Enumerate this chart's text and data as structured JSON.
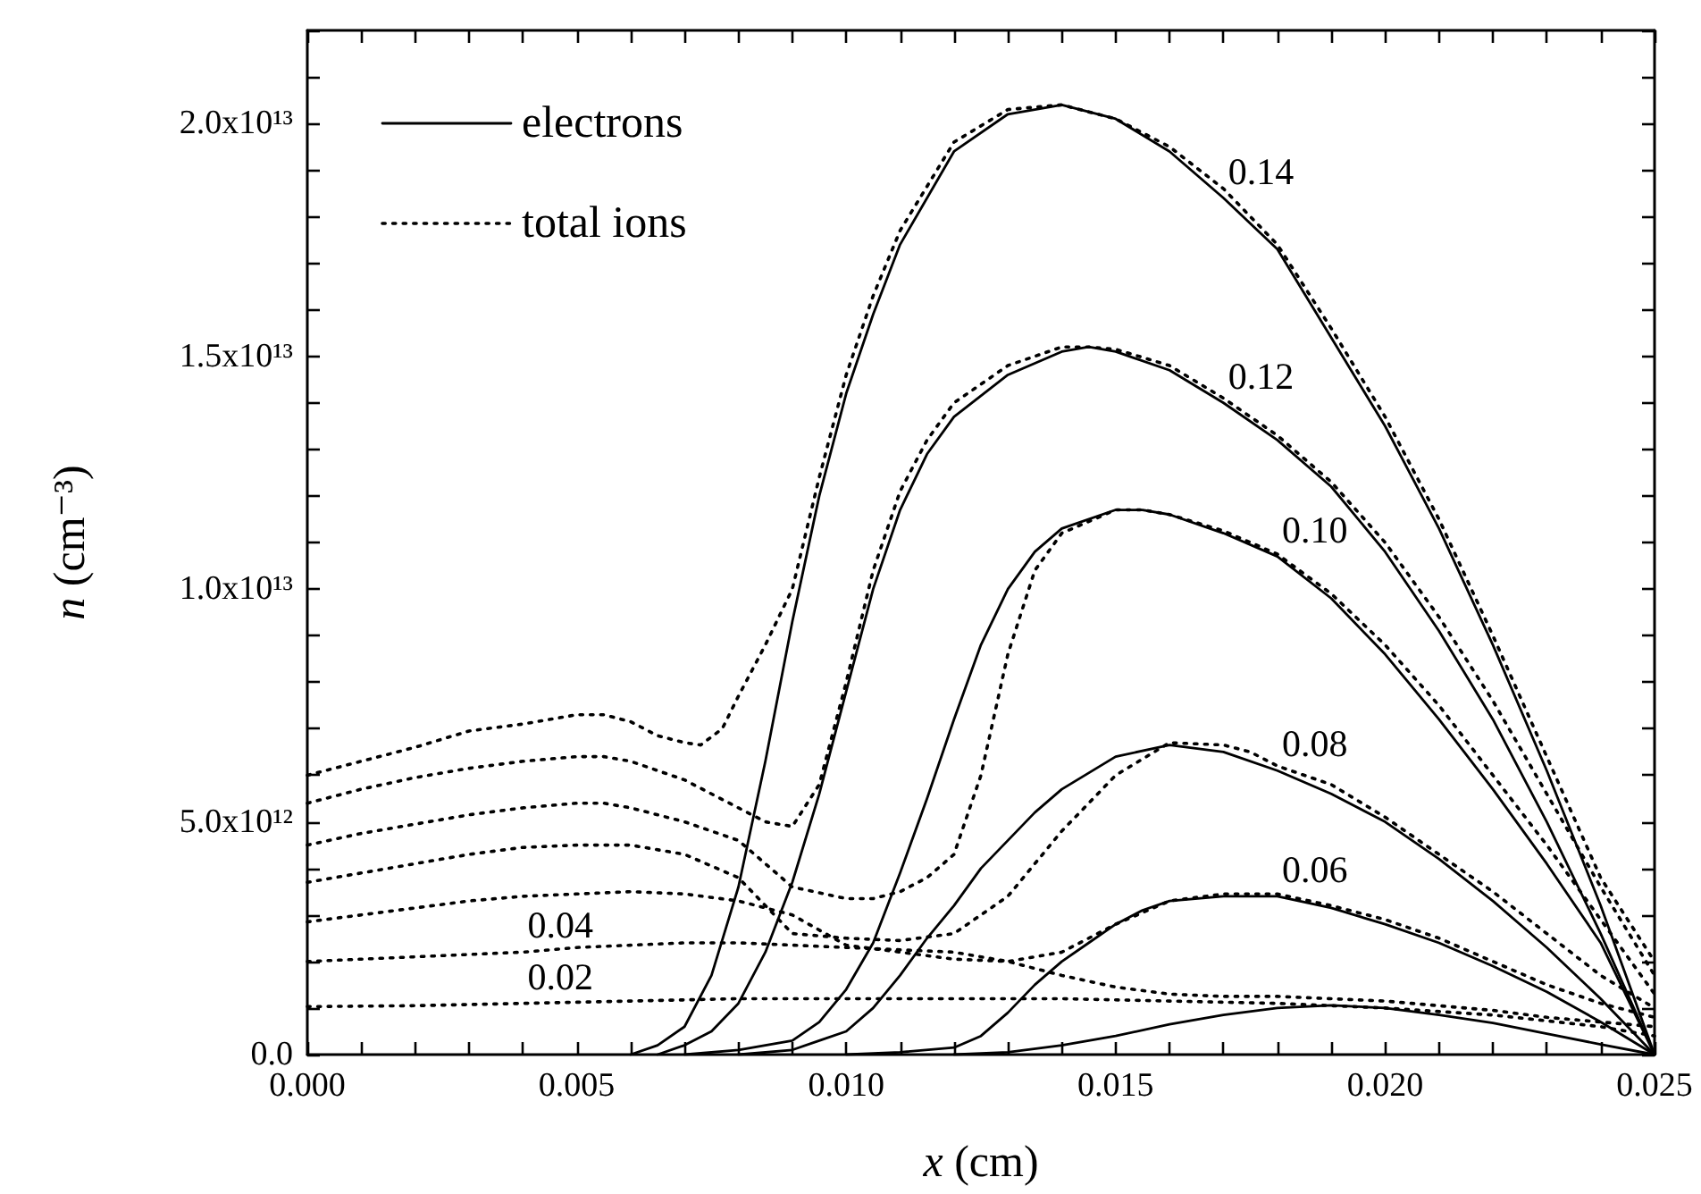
{
  "chart_data": {
    "type": "line",
    "xlabel": "x (cm)",
    "ylabel": "n (cm⁻³)",
    "legend": "top left",
    "xlim": [
      0,
      0.025
    ],
    "ylim": [
      0,
      22000000000000.0
    ],
    "xticks": [
      {
        "value": 0,
        "label": "0.000"
      },
      {
        "value": 0.001,
        "label": null
      },
      {
        "value": 0.002,
        "label": null
      },
      {
        "value": 0.003,
        "label": null
      },
      {
        "value": 0.004,
        "label": null
      },
      {
        "value": 0.005,
        "label": "0.005"
      },
      {
        "value": 0.006,
        "label": null
      },
      {
        "value": 0.007,
        "label": null
      },
      {
        "value": 0.008,
        "label": null
      },
      {
        "value": 0.009,
        "label": null
      },
      {
        "value": 0.01,
        "label": "0.010"
      },
      {
        "value": 0.011,
        "label": null
      },
      {
        "value": 0.012,
        "label": null
      },
      {
        "value": 0.013,
        "label": null
      },
      {
        "value": 0.014,
        "label": null
      },
      {
        "value": 0.015,
        "label": "0.015"
      },
      {
        "value": 0.016,
        "label": null
      },
      {
        "value": 0.017,
        "label": null
      },
      {
        "value": 0.018,
        "label": null
      },
      {
        "value": 0.019,
        "label": null
      },
      {
        "value": 0.02,
        "label": "0.020"
      },
      {
        "value": 0.021,
        "label": null
      },
      {
        "value": 0.022,
        "label": null
      },
      {
        "value": 0.023,
        "label": null
      },
      {
        "value": 0.024,
        "label": null
      },
      {
        "value": 0.025,
        "label": "0.025"
      }
    ],
    "yticks": [
      {
        "value": 0,
        "label": "0.0"
      },
      {
        "value": 1000000000000.0,
        "label": null
      },
      {
        "value": 2000000000000.0,
        "label": null
      },
      {
        "value": 3000000000000.0,
        "label": null
      },
      {
        "value": 4000000000000.0,
        "label": null
      },
      {
        "value": 5000000000000.0,
        "label": "5.0x10¹²"
      },
      {
        "value": 6000000000000.0,
        "label": null
      },
      {
        "value": 7000000000000.0,
        "label": null
      },
      {
        "value": 8000000000000.0,
        "label": null
      },
      {
        "value": 9000000000000.0,
        "label": null
      },
      {
        "value": 10000000000000.0,
        "label": "1.0x10¹³"
      },
      {
        "value": 11000000000000.0,
        "label": null
      },
      {
        "value": 12000000000000.0,
        "label": null
      },
      {
        "value": 13000000000000.0,
        "label": null
      },
      {
        "value": 14000000000000.0,
        "label": null
      },
      {
        "value": 15000000000000.0,
        "label": "1.5x10¹³"
      },
      {
        "value": 16000000000000.0,
        "label": null
      },
      {
        "value": 17000000000000.0,
        "label": null
      },
      {
        "value": 18000000000000.0,
        "label": null
      },
      {
        "value": 19000000000000.0,
        "label": null
      },
      {
        "value": 20000000000000.0,
        "label": "2.0x10¹³"
      },
      {
        "value": 21000000000000.0,
        "label": null
      },
      {
        "value": 22000000000000.0,
        "label": null
      }
    ],
    "series": [
      {
        "name": "electrons",
        "color": "#000000",
        "line_style": "solid",
        "x": [
          0.006,
          0.0065,
          0.007,
          0.0075,
          0.008,
          0.0085,
          0.009,
          0.0095,
          0.01,
          0.0105,
          0.011,
          0.012,
          0.013,
          0.014,
          0.015,
          0.016,
          0.017,
          0.018,
          0.019,
          0.02,
          0.021,
          0.022,
          0.023,
          0.024,
          0.025
        ],
        "values": [
          0,
          200000000000.0,
          600000000000.0,
          1700000000000.0,
          3600000000000.0,
          6300000000000.0,
          9300000000000.0,
          12000000000000.0,
          14200000000000.0,
          15900000000000.0,
          17400000000000.0,
          19400000000000.0,
          20200000000000.0,
          20400000000000.0,
          20100000000000.0,
          19400000000000.0,
          18400000000000.0,
          17300000000000.0,
          15400000000000.0,
          13500000000000.0,
          11300000000000.0,
          8800000000000.0,
          6100000000000.0,
          3200000000000.0,
          0
        ]
      },
      {
        "color": "#000000",
        "line_style": "solid",
        "x": [
          0.0065,
          0.007,
          0.0075,
          0.008,
          0.0085,
          0.009,
          0.0095,
          0.01,
          0.0105,
          0.011,
          0.0115,
          0.012,
          0.013,
          0.014,
          0.0145,
          0.015,
          0.016,
          0.017,
          0.018,
          0.019,
          0.02,
          0.021,
          0.022,
          0.023,
          0.024,
          0.025
        ],
        "values": [
          0,
          200000000000.0,
          500000000000.0,
          1100000000000.0,
          2200000000000.0,
          3700000000000.0,
          5600000000000.0,
          7800000000000.0,
          10000000000000.0,
          11700000000000.0,
          12900000000000.0,
          13700000000000.0,
          14600000000000.0,
          15100000000000.0,
          15200000000000.0,
          15100000000000.0,
          14700000000000.0,
          14000000000000.0,
          13200000000000.0,
          12200000000000.0,
          10800000000000.0,
          9100000000000.0,
          7200000000000.0,
          5000000000000.0,
          2600000000000.0,
          0
        ]
      },
      {
        "color": "#000000",
        "line_style": "solid",
        "x": [
          0.007,
          0.008,
          0.009,
          0.0095,
          0.01,
          0.0105,
          0.011,
          0.0115,
          0.012,
          0.0125,
          0.013,
          0.0135,
          0.014,
          0.015,
          0.0155,
          0.016,
          0.017,
          0.018,
          0.019,
          0.02,
          0.021,
          0.022,
          0.023,
          0.024,
          0.025
        ],
        "values": [
          0,
          100000000000.0,
          300000000000.0,
          700000000000.0,
          1400000000000.0,
          2400000000000.0,
          3900000000000.0,
          5500000000000.0,
          7200000000000.0,
          8800000000000.0,
          10000000000000.0,
          10800000000000.0,
          11300000000000.0,
          11700000000000.0,
          11700000000000.0,
          11600000000000.0,
          11200000000000.0,
          10700000000000.0,
          9800000000000.0,
          8600000000000.0,
          7200000000000.0,
          5700000000000.0,
          4100000000000.0,
          2400000000000.0,
          0
        ]
      },
      {
        "color": "#000000",
        "line_style": "solid",
        "x": [
          0.008,
          0.009,
          0.0095,
          0.01,
          0.0105,
          0.011,
          0.0115,
          0.012,
          0.0125,
          0.013,
          0.0135,
          0.014,
          0.015,
          0.016,
          0.017,
          0.018,
          0.019,
          0.02,
          0.021,
          0.022,
          0.023,
          0.024,
          0.025
        ],
        "values": [
          0,
          100000000000.0,
          300000000000.0,
          500000000000.0,
          1000000000000.0,
          1700000000000.0,
          2500000000000.0,
          3200000000000.0,
          4000000000000.0,
          4600000000000.0,
          5200000000000.0,
          5700000000000.0,
          6400000000000.0,
          6650000000000.0,
          6500000000000.0,
          6100000000000.0,
          5600000000000.0,
          5000000000000.0,
          4200000000000.0,
          3300000000000.0,
          2300000000000.0,
          1200000000000.0,
          0
        ]
      },
      {
        "color": "#000000",
        "line_style": "solid",
        "x": [
          0.01,
          0.011,
          0.012,
          0.0125,
          0.013,
          0.0135,
          0.014,
          0.0145,
          0.015,
          0.0155,
          0.016,
          0.017,
          0.018,
          0.019,
          0.02,
          0.021,
          0.022,
          0.023,
          0.024,
          0.025
        ],
        "values": [
          0,
          50000000000.0,
          150000000000.0,
          400000000000.0,
          900000000000.0,
          1500000000000.0,
          2000000000000.0,
          2400000000000.0,
          2800000000000.0,
          3100000000000.0,
          3300000000000.0,
          3400000000000.0,
          3400000000000.0,
          3150000000000.0,
          2800000000000.0,
          2400000000000.0,
          1900000000000.0,
          1350000000000.0,
          700000000000.0,
          0
        ]
      },
      {
        "color": "#000000",
        "line_style": "solid",
        "x": [
          0.012,
          0.013,
          0.014,
          0.015,
          0.016,
          0.017,
          0.018,
          0.019,
          0.02,
          0.021,
          0.022,
          0.023,
          0.024,
          0.025
        ],
        "values": [
          0,
          50000000000.0,
          200000000000.0,
          400000000000.0,
          650000000000.0,
          850000000000.0,
          1000000000000.0,
          1060000000000.0,
          1000000000000.0,
          850000000000.0,
          680000000000.0,
          450000000000.0,
          220000000000.0,
          0
        ]
      },
      {
        "name": "total ions",
        "color": "#000000",
        "line_style": "dotted",
        "x": [
          0,
          0.001,
          0.002,
          0.003,
          0.004,
          0.005,
          0.0055,
          0.006,
          0.0065,
          0.007,
          0.0073,
          0.0077,
          0.008,
          0.0085,
          0.009,
          0.0095,
          0.01,
          0.0105,
          0.011,
          0.012,
          0.013,
          0.014,
          0.015,
          0.016,
          0.017,
          0.018,
          0.019,
          0.02,
          0.021,
          0.022,
          0.023,
          0.024,
          0.025
        ],
        "values": [
          6000000000000.0,
          6300000000000.0,
          6600000000000.0,
          6950000000000.0,
          7100000000000.0,
          7300000000000.0,
          7300000000000.0,
          7150000000000.0,
          6850000000000.0,
          6700000000000.0,
          6650000000000.0,
          7000000000000.0,
          7700000000000.0,
          8800000000000.0,
          10000000000000.0,
          12400000000000.0,
          14600000000000.0,
          16300000000000.0,
          17700000000000.0,
          19600000000000.0,
          20300000000000.0,
          20400000000000.0,
          20100000000000.0,
          19500000000000.0,
          18600000000000.0,
          17400000000000.0,
          15600000000000.0,
          13700000000000.0,
          11500000000000.0,
          9000000000000.0,
          6400000000000.0,
          3800000000000.0,
          2000000000000.0
        ]
      },
      {
        "color": "#000000",
        "line_style": "dotted",
        "x": [
          0,
          0.001,
          0.002,
          0.003,
          0.004,
          0.005,
          0.0055,
          0.006,
          0.007,
          0.008,
          0.0085,
          0.009,
          0.0095,
          0.01,
          0.0105,
          0.011,
          0.0115,
          0.012,
          0.013,
          0.014,
          0.0145,
          0.015,
          0.016,
          0.017,
          0.018,
          0.019,
          0.02,
          0.021,
          0.022,
          0.023,
          0.024,
          0.025
        ],
        "values": [
          5400000000000.0,
          5700000000000.0,
          5950000000000.0,
          6150000000000.0,
          6300000000000.0,
          6400000000000.0,
          6400000000000.0,
          6300000000000.0,
          5900000000000.0,
          5300000000000.0,
          5000000000000.0,
          4900000000000.0,
          5800000000000.0,
          8000000000000.0,
          10400000000000.0,
          12100000000000.0,
          13200000000000.0,
          14000000000000.0,
          14800000000000.0,
          15200000000000.0,
          15200000000000.0,
          15150000000000.0,
          14800000000000.0,
          14100000000000.0,
          13300000000000.0,
          12300000000000.0,
          11000000000000.0,
          9400000000000.0,
          7600000000000.0,
          5600000000000.0,
          3600000000000.0,
          1700000000000.0
        ]
      },
      {
        "color": "#000000",
        "line_style": "dotted",
        "x": [
          0,
          0.001,
          0.002,
          0.003,
          0.004,
          0.005,
          0.0055,
          0.006,
          0.007,
          0.008,
          0.009,
          0.01,
          0.0105,
          0.011,
          0.0115,
          0.012,
          0.0125,
          0.013,
          0.0135,
          0.014,
          0.015,
          0.0155,
          0.016,
          0.017,
          0.018,
          0.019,
          0.02,
          0.021,
          0.022,
          0.023,
          0.024,
          0.025
        ],
        "values": [
          4500000000000.0,
          4750000000000.0,
          4950000000000.0,
          5150000000000.0,
          5300000000000.0,
          5400000000000.0,
          5400000000000.0,
          5300000000000.0,
          5000000000000.0,
          4600000000000.0,
          3600000000000.0,
          3350000000000.0,
          3350000000000.0,
          3500000000000.0,
          3800000000000.0,
          4300000000000.0,
          6000000000000.0,
          8600000000000.0,
          10400000000000.0,
          11200000000000.0,
          11700000000000.0,
          11700000000000.0,
          11600000000000.0,
          11250000000000.0,
          10750000000000.0,
          9900000000000.0,
          8800000000000.0,
          7500000000000.0,
          6000000000000.0,
          4500000000000.0,
          2900000000000.0,
          1300000000000.0
        ]
      },
      {
        "color": "#000000",
        "line_style": "dotted",
        "x": [
          0,
          0.001,
          0.002,
          0.003,
          0.004,
          0.005,
          0.006,
          0.007,
          0.008,
          0.009,
          0.01,
          0.011,
          0.012,
          0.013,
          0.014,
          0.015,
          0.016,
          0.017,
          0.0175,
          0.018,
          0.019,
          0.02,
          0.021,
          0.022,
          0.023,
          0.024,
          0.025
        ],
        "values": [
          3700000000000.0,
          3900000000000.0,
          4100000000000.0,
          4300000000000.0,
          4450000000000.0,
          4500000000000.0,
          4500000000000.0,
          4300000000000.0,
          3800000000000.0,
          2600000000000.0,
          2500000000000.0,
          2450000000000.0,
          2600000000000.0,
          3400000000000.0,
          4800000000000.0,
          6000000000000.0,
          6700000000000.0,
          6650000000000.0,
          6500000000000.0,
          6200000000000.0,
          5800000000000.0,
          5100000000000.0,
          4300000000000.0,
          3500000000000.0,
          2600000000000.0,
          1700000000000.0,
          1000000000000.0
        ]
      },
      {
        "color": "#000000",
        "line_style": "dotted",
        "x": [
          0,
          0.001,
          0.002,
          0.003,
          0.004,
          0.005,
          0.006,
          0.007,
          0.008,
          0.009,
          0.01,
          0.011,
          0.012,
          0.013,
          0.014,
          0.015,
          0.016,
          0.017,
          0.018,
          0.019,
          0.02,
          0.021,
          0.022,
          0.023,
          0.024,
          0.025
        ],
        "values": [
          2850000000000.0,
          3000000000000.0,
          3150000000000.0,
          3300000000000.0,
          3400000000000.0,
          3450000000000.0,
          3500000000000.0,
          3450000000000.0,
          3300000000000.0,
          3000000000000.0,
          2350000000000.0,
          2200000000000.0,
          2050000000000.0,
          2000000000000.0,
          2200000000000.0,
          2800000000000.0,
          3300000000000.0,
          3450000000000.0,
          3450000000000.0,
          3200000000000.0,
          2900000000000.0,
          2500000000000.0,
          2000000000000.0,
          1500000000000.0,
          1100000000000.0,
          800000000000.0
        ]
      },
      {
        "color": "#000000",
        "line_style": "dotted",
        "x": [
          0,
          0.001,
          0.002,
          0.003,
          0.004,
          0.005,
          0.006,
          0.007,
          0.008,
          0.009,
          0.01,
          0.011,
          0.012,
          0.013,
          0.014,
          0.015,
          0.016,
          0.017,
          0.018,
          0.019,
          0.02,
          0.021,
          0.022,
          0.023,
          0.024,
          0.025
        ],
        "values": [
          2000000000000.0,
          2050000000000.0,
          2100000000000.0,
          2150000000000.0,
          2200000000000.0,
          2300000000000.0,
          2350000000000.0,
          2400000000000.0,
          2400000000000.0,
          2350000000000.0,
          2300000000000.0,
          2250000000000.0,
          2200000000000.0,
          2000000000000.0,
          1700000000000.0,
          1450000000000.0,
          1300000000000.0,
          1250000000000.0,
          1250000000000.0,
          1200000000000.0,
          1150000000000.0,
          1050000000000.0,
          950000000000.0,
          800000000000.0,
          700000000000.0,
          600000000000.0
        ]
      },
      {
        "color": "#000000",
        "line_style": "dotted",
        "x": [
          0,
          0.002,
          0.004,
          0.006,
          0.008,
          0.01,
          0.012,
          0.014,
          0.016,
          0.018,
          0.02,
          0.022,
          0.024,
          0.025
        ],
        "values": [
          1030000000000.0,
          1050000000000.0,
          1100000000000.0,
          1150000000000.0,
          1200000000000.0,
          1200000000000.0,
          1200000000000.0,
          1200000000000.0,
          1150000000000.0,
          1100000000000.0,
          1000000000000.0,
          850000000000.0,
          600000000000.0,
          400000000000.0
        ]
      }
    ],
    "annotations": [
      {
        "text": "0.02",
        "x": 0.004,
        "y": 1100000000000.0
      },
      {
        "text": "0.04",
        "x": 0.004,
        "y": 2200000000000.0
      },
      {
        "text": "0.06",
        "x": 0.018,
        "y": 3400000000000.0
      },
      {
        "text": "0.08",
        "x": 0.018,
        "y": 6100000000000.0
      },
      {
        "text": "0.10",
        "x": 0.018,
        "y": 10700000000000.0
      },
      {
        "text": "0.12",
        "x": 0.017,
        "y": 14000000000000.0
      },
      {
        "text": "0.14",
        "x": 0.017,
        "y": 18400000000000.0
      }
    ]
  }
}
